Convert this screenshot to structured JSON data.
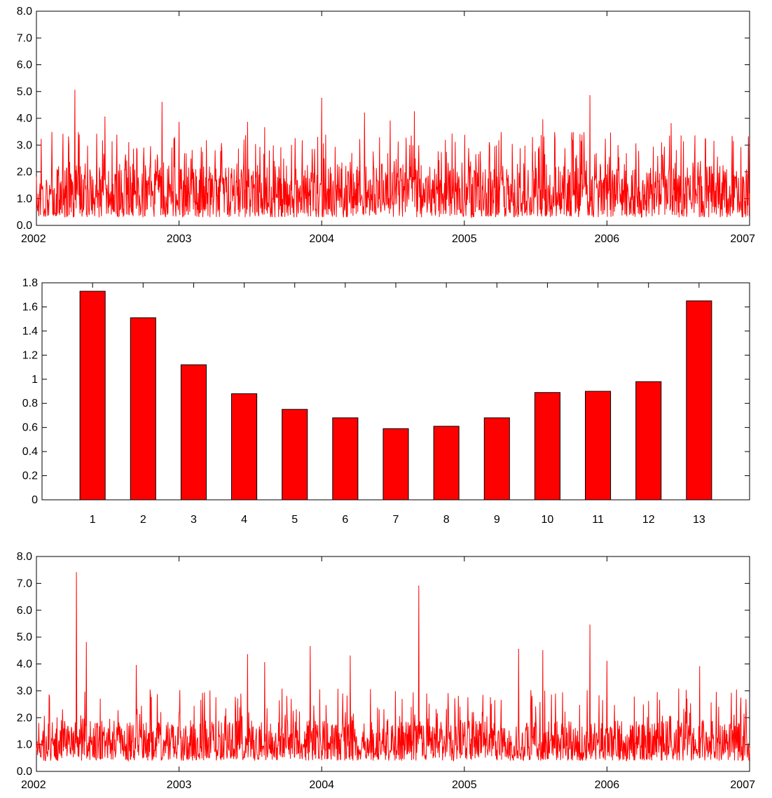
{
  "colors": {
    "series": "#ff0000",
    "axis": "#000000",
    "background": "#ffffff"
  },
  "chart_data": [
    {
      "type": "line",
      "title": "",
      "xlabel": "",
      "ylabel": "",
      "x_ticks": [
        "2002",
        "2003",
        "2004",
        "2005",
        "2006",
        "2007"
      ],
      "y_ticks": [
        "0.0",
        "1.0",
        "2.0",
        "3.0",
        "4.0",
        "5.0",
        "6.0",
        "7.0",
        "8.0"
      ],
      "xlim": [
        2002,
        2007
      ],
      "ylim": [
        0,
        8
      ],
      "grid": false,
      "series": [
        {
          "color": "#ff0000",
          "base_range": [
            0.3,
            2.3
          ],
          "spikes": [
            {
              "x": 2002.27,
              "y": 5.05
            },
            {
              "x": 2002.48,
              "y": 4.05
            },
            {
              "x": 2002.88,
              "y": 4.6
            },
            {
              "x": 2003.0,
              "y": 3.85
            },
            {
              "x": 2003.48,
              "y": 3.85
            },
            {
              "x": 2003.6,
              "y": 3.65
            },
            {
              "x": 2004.0,
              "y": 4.75
            },
            {
              "x": 2004.3,
              "y": 4.2
            },
            {
              "x": 2004.48,
              "y": 3.9
            },
            {
              "x": 2004.65,
              "y": 4.25
            },
            {
              "x": 2005.55,
              "y": 3.95
            },
            {
              "x": 2005.88,
              "y": 4.85
            },
            {
              "x": 2006.45,
              "y": 3.8
            }
          ]
        }
      ]
    },
    {
      "type": "bar",
      "title": "",
      "xlabel": "",
      "ylabel": "",
      "categories": [
        "1",
        "2",
        "3",
        "4",
        "5",
        "6",
        "7",
        "8",
        "9",
        "10",
        "11",
        "12",
        "13"
      ],
      "values": [
        1.73,
        1.51,
        1.12,
        0.88,
        0.75,
        0.68,
        0.59,
        0.61,
        0.68,
        0.89,
        0.9,
        0.98,
        1.65
      ],
      "y_ticks": [
        "0",
        "0.2",
        "0.4",
        "0.6",
        "0.8",
        "1",
        "1.2",
        "1.4",
        "1.6",
        "1.8"
      ],
      "ylim": [
        0,
        1.8
      ],
      "grid": false,
      "series": [
        {
          "color": "#ff0000"
        }
      ]
    },
    {
      "type": "line",
      "title": "",
      "xlabel": "",
      "ylabel": "",
      "x_ticks": [
        "2002",
        "2003",
        "2004",
        "2005",
        "2006",
        "2007"
      ],
      "y_ticks": [
        "0.0",
        "1.0",
        "2.0",
        "3.0",
        "4.0",
        "5.0",
        "6.0",
        "7.0",
        "8.0"
      ],
      "xlim": [
        2002,
        2007
      ],
      "ylim": [
        0,
        8
      ],
      "grid": false,
      "series": [
        {
          "color": "#ff0000",
          "base_range": [
            0.4,
            1.9
          ],
          "spikes": [
            {
              "x": 2002.28,
              "y": 7.4
            },
            {
              "x": 2002.35,
              "y": 4.8
            },
            {
              "x": 2002.7,
              "y": 3.95
            },
            {
              "x": 2003.48,
              "y": 4.35
            },
            {
              "x": 2003.6,
              "y": 4.05
            },
            {
              "x": 2003.92,
              "y": 4.65
            },
            {
              "x": 2004.2,
              "y": 4.3
            },
            {
              "x": 2004.68,
              "y": 6.9
            },
            {
              "x": 2005.38,
              "y": 4.55
            },
            {
              "x": 2005.55,
              "y": 4.5
            },
            {
              "x": 2005.88,
              "y": 5.45
            },
            {
              "x": 2006.0,
              "y": 4.1
            },
            {
              "x": 2006.65,
              "y": 3.9
            }
          ]
        }
      ]
    }
  ]
}
